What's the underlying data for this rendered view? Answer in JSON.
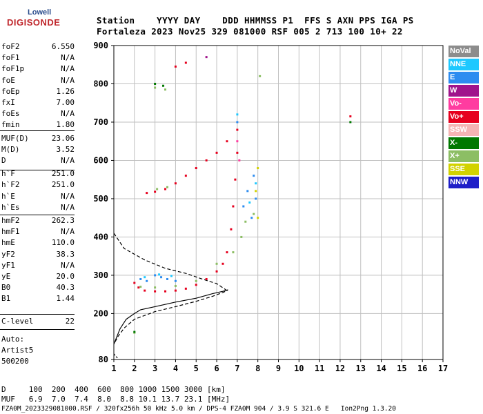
{
  "logo": {
    "line1": "Lowell",
    "line2": "DIGISONDE"
  },
  "header": {
    "row1": "Station    YYYY DAY    DDD HHMMSS P1  FFS S AXN PPS IGA PS",
    "row2": "Fortaleza 2023 Nov25 329 081000 RSF 005 2 713 100 10+ 22"
  },
  "params": [
    {
      "name": "foF2",
      "value": "6.550"
    },
    {
      "name": "foF1",
      "value": "N/A"
    },
    {
      "name": "foF1p",
      "value": "N/A"
    },
    {
      "name": "foE",
      "value": "N/A"
    },
    {
      "name": "foEp",
      "value": "1.26"
    },
    {
      "name": "fxI",
      "value": "7.00"
    },
    {
      "name": "foEs",
      "value": "N/A"
    },
    {
      "name": "fmin",
      "value": "1.80"
    },
    {
      "name": "MUF(D)",
      "value": "23.06"
    },
    {
      "name": "M(D)",
      "value": "3.52"
    },
    {
      "name": "D",
      "value": "N/A"
    },
    {
      "name": "h`F",
      "value": "251.0"
    },
    {
      "name": "h`F2",
      "value": "251.0"
    },
    {
      "name": "h`E",
      "value": "N/A"
    },
    {
      "name": "h`Es",
      "value": "N/A"
    },
    {
      "name": "hmF2",
      "value": "262.3"
    },
    {
      "name": "hmF1",
      "value": "N/A"
    },
    {
      "name": "hmE",
      "value": "110.0"
    },
    {
      "name": "yF2",
      "value": "38.3"
    },
    {
      "name": "yF1",
      "value": "N/A"
    },
    {
      "name": "yE",
      "value": "20.0"
    },
    {
      "name": "B0",
      "value": "40.3"
    },
    {
      "name": "B1",
      "value": "1.44"
    }
  ],
  "clevel": {
    "name": "C-level",
    "value": "22"
  },
  "auto": {
    "line1": "Auto:",
    "line2": "Artist5",
    "line3": "500200"
  },
  "legend": [
    {
      "label": "NoVal",
      "color": "#8c8c8c"
    },
    {
      "label": "NNE",
      "color": "#1ec8ff"
    },
    {
      "label": "E",
      "color": "#2d8cf0"
    },
    {
      "label": "W",
      "color": "#a0148c"
    },
    {
      "label": "Vo-",
      "color": "#ff3ca0"
    },
    {
      "label": "Vo+",
      "color": "#e6001e"
    },
    {
      "label": "SSW",
      "color": "#f5b4b4"
    },
    {
      "label": "X-",
      "color": "#007800"
    },
    {
      "label": "X+",
      "color": "#8cbe64"
    },
    {
      "label": "SSE",
      "color": "#d2d200"
    },
    {
      "label": "NNW",
      "color": "#1e1ec8"
    }
  ],
  "footer": {
    "row1": "D     100  200  400  600  800 1000 1500 3000 [km]",
    "row2": "MUF   6.9  7.0  7.4  8.0  8.8 10.1 13.7 23.1 [MHz]",
    "row3": "FZA0M_2023329081000.RSF / 320fx256h 50 kHz 5.0 km / DPS-4 FZA0M 904 / 3.9 S 321.6 E   Ion2Png 1.3.20"
  },
  "chart_data": {
    "type": "scatter",
    "title": "",
    "xlabel": "",
    "ylabel": "",
    "xlim": [
      1,
      17
    ],
    "ylim": [
      80,
      900
    ],
    "x_ticks": [
      1,
      2,
      3,
      4,
      5,
      6,
      7,
      8,
      9,
      10,
      11,
      12,
      13,
      14,
      15,
      16,
      17
    ],
    "y_ticks": [
      80,
      200,
      300,
      400,
      500,
      600,
      700,
      800,
      900
    ],
    "grid": true,
    "legend_position": "right",
    "series": [
      {
        "name": "Vo+",
        "color": "#e6001e",
        "points": [
          [
            2.0,
            280
          ],
          [
            2.2,
            268
          ],
          [
            2.5,
            260
          ],
          [
            3.0,
            258
          ],
          [
            3.5,
            258
          ],
          [
            4.0,
            260
          ],
          [
            4.5,
            265
          ],
          [
            5.0,
            275
          ],
          [
            5.5,
            290
          ],
          [
            6.0,
            310
          ],
          [
            6.3,
            330
          ],
          [
            6.5,
            360
          ],
          [
            6.7,
            420
          ],
          [
            6.8,
            480
          ],
          [
            6.9,
            550
          ],
          [
            7.0,
            620
          ],
          [
            7.0,
            680
          ],
          [
            2.6,
            515
          ],
          [
            3.0,
            518
          ],
          [
            3.5,
            525
          ],
          [
            4.0,
            540
          ],
          [
            4.5,
            560
          ],
          [
            5.0,
            580
          ],
          [
            5.5,
            600
          ],
          [
            6.0,
            620
          ],
          [
            6.5,
            650
          ],
          [
            4.0,
            845
          ],
          [
            4.5,
            855
          ],
          [
            12.5,
            715
          ]
        ]
      },
      {
        "name": "E",
        "color": "#2d8cf0",
        "points": [
          [
            2.3,
            290
          ],
          [
            2.6,
            285
          ],
          [
            3.0,
            300
          ],
          [
            3.3,
            295
          ],
          [
            3.6,
            290
          ],
          [
            4.0,
            285
          ],
          [
            7.3,
            480
          ],
          [
            7.5,
            520
          ],
          [
            7.7,
            450
          ],
          [
            7.8,
            560
          ],
          [
            7.9,
            500
          ],
          [
            7.0,
            700
          ]
        ]
      },
      {
        "name": "NNE",
        "color": "#1ec8ff",
        "points": [
          [
            2.5,
            295
          ],
          [
            3.2,
            302
          ],
          [
            3.8,
            298
          ],
          [
            7.6,
            490
          ],
          [
            7.9,
            540
          ],
          [
            7.0,
            720
          ]
        ]
      },
      {
        "name": "X+",
        "color": "#8cbe64",
        "points": [
          [
            2.3,
            270
          ],
          [
            3.0,
            268
          ],
          [
            4.0,
            272
          ],
          [
            5.0,
            285
          ],
          [
            6.0,
            330
          ],
          [
            6.8,
            360
          ],
          [
            7.2,
            400
          ],
          [
            7.4,
            440
          ],
          [
            7.8,
            460
          ],
          [
            2.0,
            150
          ],
          [
            3.0,
            790
          ],
          [
            3.5,
            785
          ],
          [
            8.1,
            820
          ],
          [
            3.1,
            525
          ],
          [
            3.6,
            530
          ]
        ]
      },
      {
        "name": "X-",
        "color": "#007800",
        "points": [
          [
            2.0,
            152
          ],
          [
            12.5,
            700
          ],
          [
            3.0,
            800
          ],
          [
            3.4,
            795
          ]
        ]
      },
      {
        "name": "SSE",
        "color": "#d2d200",
        "points": [
          [
            8.0,
            580
          ],
          [
            8.0,
            450
          ],
          [
            7.9,
            520
          ]
        ]
      },
      {
        "name": "Vo-",
        "color": "#ff3ca0",
        "points": [
          [
            7.1,
            600
          ],
          [
            7.0,
            650
          ]
        ]
      },
      {
        "name": "W",
        "color": "#a0148c",
        "points": [
          [
            5.5,
            870
          ]
        ]
      }
    ],
    "profile_dashed": [
      [
        1.0,
        410
      ],
      [
        1.5,
        370
      ],
      [
        2.5,
        340
      ],
      [
        3.5,
        318
      ],
      [
        4.5,
        305
      ],
      [
        5.2,
        292
      ],
      [
        5.6,
        285
      ],
      [
        6.0,
        278
      ],
      [
        6.5,
        260
      ],
      [
        6.3,
        255
      ],
      [
        5.8,
        245
      ],
      [
        5.0,
        232
      ],
      [
        4.0,
        218
      ],
      [
        3.0,
        205
      ],
      [
        2.0,
        185
      ],
      [
        1.5,
        162
      ],
      [
        1.2,
        140
      ],
      [
        1.0,
        120
      ]
    ],
    "profile_solid": [
      [
        1.0,
        120
      ],
      [
        1.3,
        160
      ],
      [
        1.6,
        185
      ],
      [
        2.0,
        200
      ],
      [
        2.3,
        210
      ],
      [
        3.0,
        218
      ],
      [
        4.0,
        230
      ],
      [
        5.0,
        240
      ],
      [
        5.8,
        252
      ],
      [
        6.3,
        258
      ],
      [
        6.55,
        262
      ]
    ],
    "profile_lower_dashed": [
      [
        1.0,
        95
      ],
      [
        1.1,
        88
      ],
      [
        1.2,
        83
      ]
    ]
  }
}
